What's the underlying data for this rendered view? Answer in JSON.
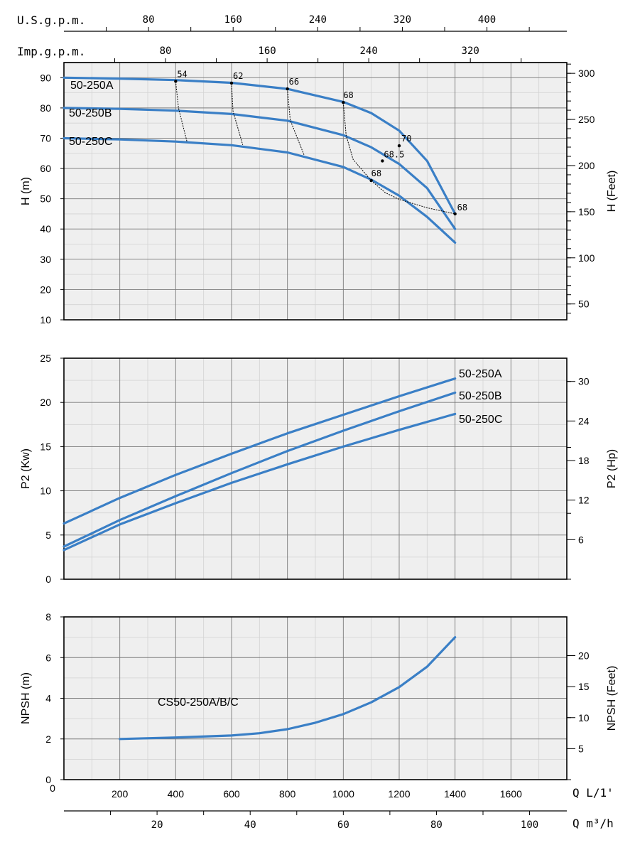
{
  "chart_data": [
    {
      "type": "line",
      "id": "head",
      "ylabel": "H (m)",
      "ylabel_right": "H (Feet)",
      "xlim": [
        0,
        1800
      ],
      "ylim": [
        10,
        95
      ],
      "y_ticks": [
        10,
        20,
        30,
        40,
        50,
        60,
        70,
        80,
        90
      ],
      "y_right_ticks": [
        50,
        100,
        150,
        200,
        250,
        300
      ],
      "y_right_factor": 3.28084,
      "top_axes": [
        {
          "label": "U.S.g.p.m.",
          "ticks": [
            80,
            160,
            240,
            320,
            400
          ],
          "factor": 0.26417
        },
        {
          "label": "Imp.g.p.m.",
          "ticks": [
            80,
            160,
            240,
            320
          ],
          "factor": 0.21997
        }
      ],
      "series": [
        {
          "name": "50-250A",
          "x": [
            0,
            200,
            400,
            600,
            800,
            1000,
            1100,
            1200,
            1300,
            1400
          ],
          "y": [
            90,
            89.7,
            89.2,
            88.3,
            86.3,
            82,
            78.3,
            72.5,
            62.5,
            45
          ]
        },
        {
          "name": "50-250B",
          "x": [
            0,
            200,
            400,
            600,
            800,
            1000,
            1100,
            1200,
            1300,
            1400
          ],
          "y": [
            80,
            79.7,
            79.1,
            78,
            75.8,
            71,
            67,
            61.5,
            53.5,
            40
          ]
        },
        {
          "name": "50-250C",
          "x": [
            0,
            200,
            400,
            600,
            800,
            1000,
            1100,
            1200,
            1300,
            1400
          ],
          "y": [
            70,
            69.6,
            68.9,
            67.7,
            65.3,
            60.5,
            56.3,
            51,
            44,
            35.5
          ]
        }
      ],
      "efficiency_lines": [
        {
          "label": "54",
          "points": [
            [
              400,
              88.8
            ],
            [
              410,
              80
            ],
            [
              440,
              69
            ]
          ]
        },
        {
          "label": "62",
          "points": [
            [
              600,
              88.2
            ],
            [
              605,
              79
            ],
            [
              640,
              67.8
            ]
          ]
        },
        {
          "label": "66",
          "points": [
            [
              800,
              86.3
            ],
            [
              810,
              76
            ],
            [
              860,
              64.3
            ]
          ]
        },
        {
          "label": "68",
          "points": [
            [
              1000,
              81.8
            ],
            [
              1010,
              71
            ],
            [
              1035,
              63
            ],
            [
              1100,
              56
            ]
          ]
        },
        {
          "label": "70",
          "points": [
            [
              1200,
              67.5
            ]
          ]
        },
        {
          "label": "68.5",
          "points": [
            [
              1140,
              62.5
            ]
          ]
        },
        {
          "label": "68",
          "points": [
            [
              1100,
              56
            ],
            [
              1150,
              52
            ],
            [
              1200,
              49.8
            ],
            [
              1300,
              47
            ],
            [
              1400,
              45
            ]
          ]
        }
      ],
      "efficiency_labels": [
        "54",
        "62",
        "66",
        "68",
        "70",
        "68.5",
        "68",
        "68"
      ]
    },
    {
      "type": "line",
      "id": "power",
      "ylabel": "P2 (Kw)",
      "ylabel_right": "P2 (Hp)",
      "xlim": [
        0,
        1800
      ],
      "ylim": [
        0,
        25
      ],
      "y_ticks": [
        0,
        5,
        10,
        15,
        20,
        25
      ],
      "y_right_ticks": [
        6,
        12,
        18,
        24,
        30
      ],
      "y_right_factor": 1.341,
      "series": [
        {
          "name": "50-250A",
          "x": [
            0,
            200,
            400,
            600,
            800,
            1000,
            1200,
            1400
          ],
          "y": [
            6.3,
            9.2,
            11.8,
            14.2,
            16.5,
            18.6,
            20.7,
            22.7
          ]
        },
        {
          "name": "50-250B",
          "x": [
            0,
            200,
            400,
            600,
            800,
            1000,
            1200,
            1400
          ],
          "y": [
            3.7,
            6.7,
            9.4,
            12.0,
            14.5,
            16.8,
            19.0,
            21.1
          ]
        },
        {
          "name": "50-250C",
          "x": [
            0,
            200,
            400,
            600,
            800,
            1000,
            1200,
            1400
          ],
          "y": [
            3.3,
            6.2,
            8.6,
            10.9,
            13.0,
            15.0,
            16.9,
            18.7
          ]
        }
      ]
    },
    {
      "type": "line",
      "id": "npsh",
      "ylabel": "NPSH (m)",
      "ylabel_right": "NPSH (Feet)",
      "xlim": [
        0,
        1800
      ],
      "ylim": [
        0,
        8
      ],
      "y_ticks": [
        0,
        2,
        4,
        6,
        8
      ],
      "y_right_ticks": [
        5,
        10,
        15,
        20
      ],
      "y_right_factor": 3.28084,
      "x_ticks": [
        200,
        400,
        600,
        800,
        1000,
        1200,
        1400,
        1600
      ],
      "xlabel": "Q L/1'",
      "bottom_axis": {
        "label": "Q m³/h",
        "ticks": [
          20,
          40,
          60,
          80,
          100
        ],
        "factor": 0.06
      },
      "series": [
        {
          "name": "CS50-250A/B/C",
          "x": [
            200,
            400,
            600,
            700,
            800,
            900,
            1000,
            1100,
            1200,
            1300,
            1400
          ],
          "y": [
            2.0,
            2.07,
            2.17,
            2.28,
            2.48,
            2.8,
            3.22,
            3.8,
            4.55,
            5.55,
            7.0
          ]
        }
      ]
    }
  ]
}
